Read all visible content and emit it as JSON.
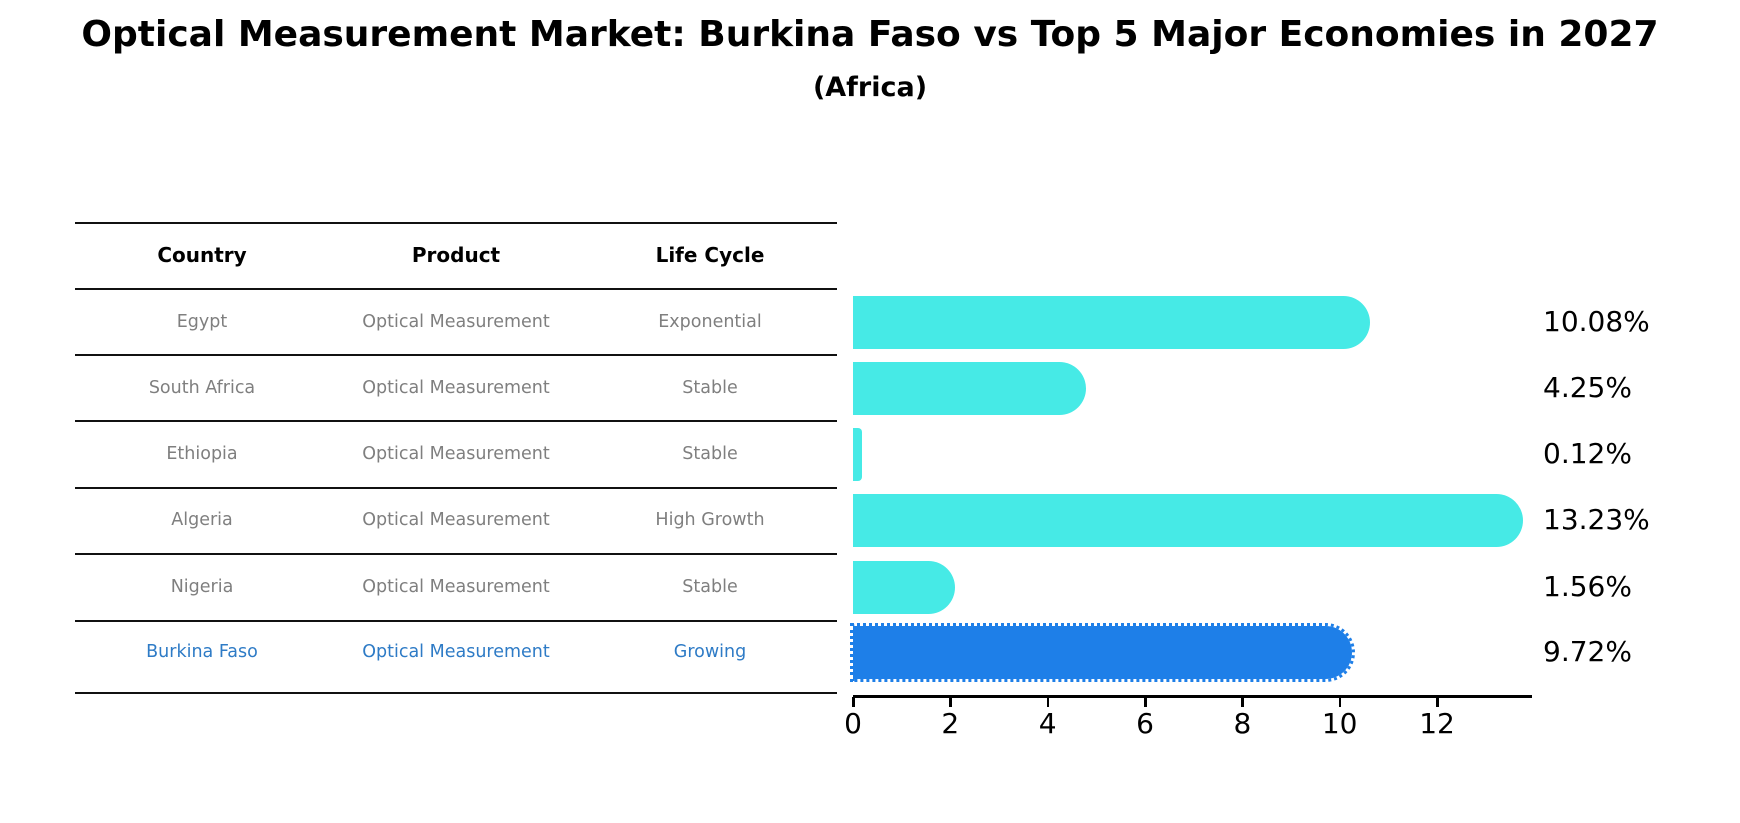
{
  "header": {
    "title": "Optical Measurement Market: Burkina Faso vs Top 5 Major Economies in 2027",
    "subtitle": "(Africa)"
  },
  "table": {
    "columns": [
      "Country",
      "Product",
      "Life Cycle"
    ],
    "rows": [
      {
        "country": "Egypt",
        "product": "Optical Measurement",
        "life_cycle": "Exponential"
      },
      {
        "country": "South Africa",
        "product": "Optical Measurement",
        "life_cycle": "Stable"
      },
      {
        "country": "Ethiopia",
        "product": "Optical Measurement",
        "life_cycle": "Stable"
      },
      {
        "country": "Algeria",
        "product": "Optical Measurement",
        "life_cycle": "High Growth"
      },
      {
        "country": "Nigeria",
        "product": "Optical Measurement",
        "life_cycle": "Stable"
      },
      {
        "country": "Burkina Faso",
        "product": "Optical Measurement",
        "life_cycle": "Growing"
      }
    ],
    "highlight_row_index": 5
  },
  "chart_data": {
    "type": "bar",
    "orientation": "horizontal",
    "title": "Optical Measurement Market: Burkina Faso vs Top 5 Major Economies in 2027",
    "subtitle": "(Africa)",
    "categories": [
      "Egypt",
      "South Africa",
      "Ethiopia",
      "Algeria",
      "Nigeria",
      "Burkina Faso"
    ],
    "values": [
      10.08,
      4.25,
      0.12,
      13.23,
      1.56,
      9.72
    ],
    "value_labels": [
      "10.08%",
      "4.25%",
      "0.12%",
      "13.23%",
      "1.56%",
      "9.72%"
    ],
    "highlight_index": 5,
    "x_ticks": [
      0,
      2,
      4,
      6,
      8,
      10,
      12
    ],
    "xlim": [
      0,
      13.95
    ],
    "grid": false,
    "legend": "none"
  },
  "colors": {
    "bar_default": "#46eae6",
    "bar_highlight": "#1e7fe8",
    "highlight_text": "#2e7bc6",
    "table_text": "#7f7f7f",
    "heading_text": "#000000"
  }
}
